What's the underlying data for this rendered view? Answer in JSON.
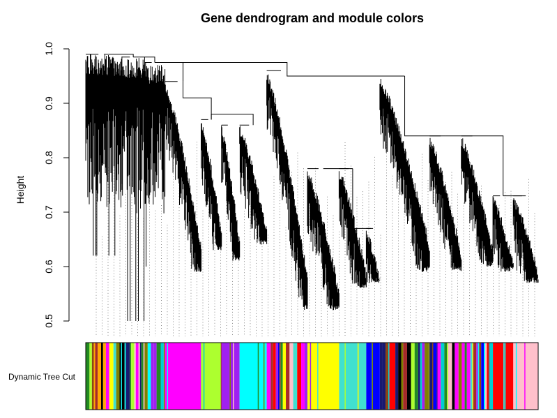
{
  "chart_data": {
    "type": "dendrogram",
    "title": "Gene dendrogram and module colors",
    "ylabel": "Height",
    "xlabel": "",
    "ylim": [
      0.5,
      1.0
    ],
    "y_ticks": [
      {
        "value": 1.0,
        "label": "1.0"
      },
      {
        "value": 0.9,
        "label": "0.9"
      },
      {
        "value": 0.8,
        "label": "0.8"
      },
      {
        "value": 0.7,
        "label": "0.7"
      },
      {
        "value": 0.6,
        "label": "0.6"
      },
      {
        "value": 0.5,
        "label": "0.5"
      }
    ],
    "color_row_label": "Dynamic Tree Cut",
    "clusters": [
      {
        "range": [
          0.0,
          0.08
        ],
        "merge": 0.99,
        "min": 0.62,
        "profile": "flat",
        "color": "mixed"
      },
      {
        "range": [
          0.08,
          0.13
        ],
        "merge": 0.985,
        "min": 0.5,
        "profile": "flat",
        "color": "mixed"
      },
      {
        "range": [
          0.13,
          0.175
        ],
        "merge": 0.975,
        "min": 0.6,
        "profile": "flat",
        "color": "mixed"
      },
      {
        "range": [
          0.175,
          0.255
        ],
        "merge": 0.94,
        "min": 0.59,
        "profile": "decay",
        "color": "magenta"
      },
      {
        "range": [
          0.255,
          0.3
        ],
        "merge": 0.87,
        "min": 0.63,
        "profile": "decay",
        "color": "greenyellow"
      },
      {
        "range": [
          0.3,
          0.34
        ],
        "merge": 0.86,
        "min": 0.61,
        "profile": "decay",
        "color": "purple"
      },
      {
        "range": [
          0.34,
          0.4
        ],
        "merge": 0.86,
        "min": 0.64,
        "profile": "decay",
        "color": "cyan"
      },
      {
        "range": [
          0.4,
          0.49
        ],
        "merge": 0.96,
        "min": 0.52,
        "profile": "decay",
        "color": "mixed"
      },
      {
        "range": [
          0.49,
          0.56
        ],
        "merge": 0.78,
        "min": 0.52,
        "profile": "decay",
        "color": "yellow"
      },
      {
        "range": [
          0.56,
          0.62
        ],
        "merge": 0.78,
        "min": 0.56,
        "profile": "decay",
        "color": "turquoise"
      },
      {
        "range": [
          0.62,
          0.65
        ],
        "merge": 0.67,
        "min": 0.57,
        "profile": "decay",
        "color": "blue"
      },
      {
        "range": [
          0.65,
          0.76
        ],
        "merge": 0.95,
        "min": 0.59,
        "profile": "decay",
        "color": "mixed"
      },
      {
        "range": [
          0.76,
          0.83
        ],
        "merge": 0.84,
        "min": 0.59,
        "profile": "decay",
        "color": "mixed"
      },
      {
        "range": [
          0.83,
          0.9
        ],
        "merge": 0.84,
        "min": 0.6,
        "profile": "decay",
        "color": "mixed"
      },
      {
        "range": [
          0.9,
          0.945
        ],
        "merge": 0.73,
        "min": 0.59,
        "profile": "decay",
        "color": "red"
      },
      {
        "range": [
          0.945,
          1.0
        ],
        "merge": 0.73,
        "min": 0.57,
        "profile": "decay",
        "color": "pink"
      }
    ],
    "top_merges": [
      {
        "left": 0,
        "right": 1,
        "height": 0.99
      },
      {
        "left": 1,
        "right": 2,
        "height": 0.985
      },
      {
        "left": 2,
        "right": 3,
        "height": 0.975
      },
      {
        "left": 3,
        "right": 7,
        "height": 0.975
      },
      {
        "left": 7,
        "right": 11,
        "height": 0.95
      },
      {
        "left": 3,
        "right": 4,
        "height": 0.91
      },
      {
        "left": 4,
        "right": 6,
        "height": 0.88
      },
      {
        "left": 8,
        "right": 9,
        "height": 0.78
      },
      {
        "left": 9,
        "right": 10,
        "height": 0.67
      },
      {
        "left": 11,
        "right": 12,
        "height": 0.84
      },
      {
        "left": 12,
        "right": 14,
        "height": 0.84
      },
      {
        "left": 14,
        "right": 15,
        "height": 0.73
      }
    ],
    "module_colors": [
      "#a52a2a",
      "#ffa500",
      "#00ced1",
      "#ffff00",
      "#000000",
      "#ff00ff",
      "#adff2f",
      "#a020f0",
      "#00ffff",
      "#0000ff",
      "#40e0d0",
      "#228b22",
      "#ff0000",
      "#ffc0cb",
      "#191970",
      "#808000",
      "#8b4513"
    ]
  }
}
